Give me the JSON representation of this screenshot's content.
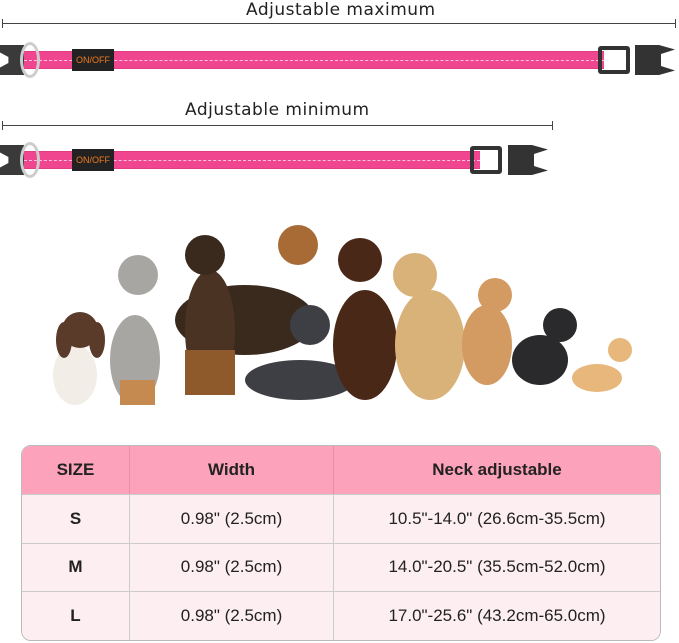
{
  "dimensions": {
    "max_label": "Adjustable maximum",
    "min_label": "Adjustable minimum"
  },
  "collar": {
    "color": "#f0458f",
    "tag_text": "ON/OFF"
  },
  "table": {
    "headers": [
      "SIZE",
      "Width",
      "Neck adjustable"
    ],
    "rows": [
      [
        "S",
        "0.98\" (2.5cm)",
        "10.5\"-14.0\" (26.6cm-35.5cm)"
      ],
      [
        "M",
        "0.98\" (2.5cm)",
        "14.0\"-20.5\" (35.5cm-52.0cm)"
      ],
      [
        "L",
        "0.98\" (2.5cm)",
        "17.0\"-25.6\" (43.2cm-65.0cm)"
      ]
    ],
    "header_color": "#fca2ba",
    "row_color": "#fdeef1"
  }
}
